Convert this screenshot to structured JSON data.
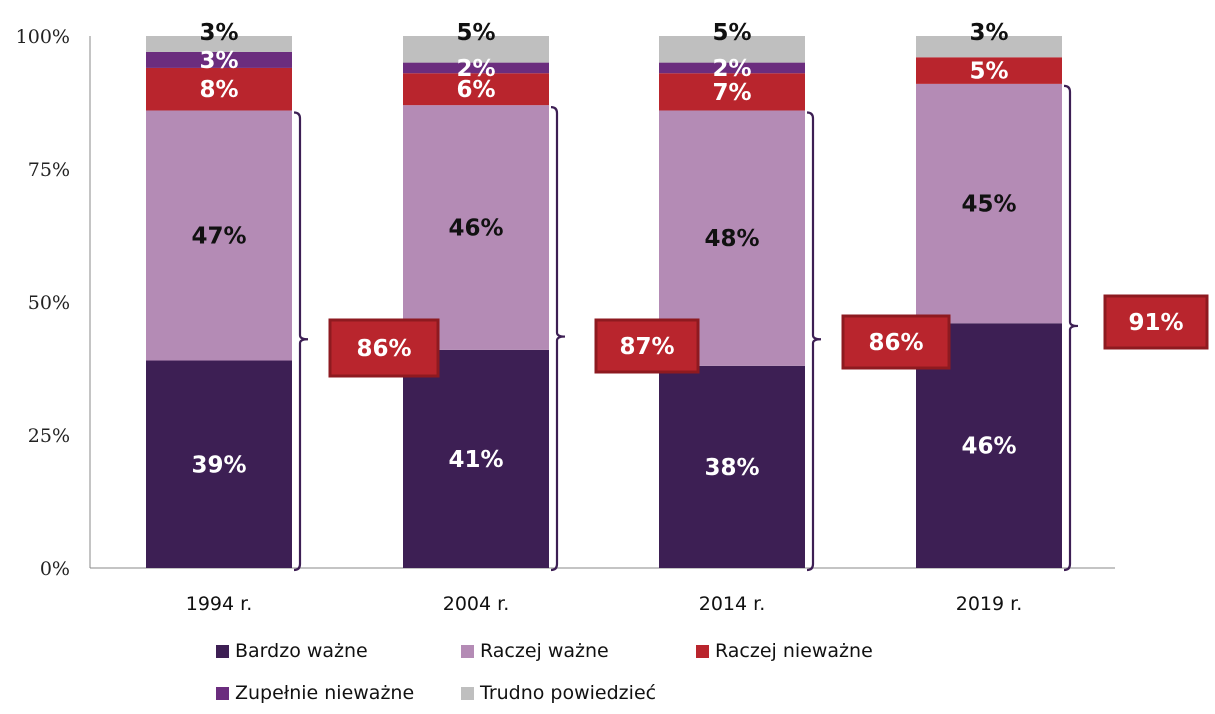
{
  "chart_data": {
    "type": "bar",
    "stacked": true,
    "title": "",
    "xlabel": "",
    "ylabel": "",
    "ylim": [
      0,
      100
    ],
    "yticks": [
      "0%",
      "25%",
      "50%",
      "75%",
      "100%"
    ],
    "ytick_values": [
      0,
      25,
      50,
      75,
      100
    ],
    "categories": [
      "1994 r.",
      "2004 r.",
      "2014 r.",
      "2019 r."
    ],
    "series": [
      {
        "name": "Bardzo ważne",
        "color": "#3d1f54",
        "label_color": "#ffffff",
        "values": [
          39,
          41,
          38,
          46
        ],
        "labels": [
          "39%",
          "41%",
          "38%",
          "46%"
        ]
      },
      {
        "name": "Raczej ważne",
        "color": "#b48bb5",
        "label_color": "#111111",
        "values": [
          47,
          46,
          48,
          45
        ],
        "labels": [
          "47%",
          "46%",
          "48%",
          "45%"
        ]
      },
      {
        "name": "Raczej nieważne",
        "color": "#b9252d",
        "label_color": "#ffffff",
        "values": [
          8,
          6,
          7,
          5
        ],
        "labels": [
          "8%",
          "6%",
          "7%",
          "5%"
        ]
      },
      {
        "name": "Zupełnie nieważne",
        "color": "#6b2d7e",
        "label_color": "#ffffff",
        "values": [
          3,
          2,
          2,
          0
        ],
        "labels": [
          "3%",
          "2%",
          "2%",
          ""
        ]
      },
      {
        "name": "Trudno powiedzieć",
        "color": "#bfbfbf",
        "label_color": "#111111",
        "values": [
          3,
          5,
          5,
          3
        ],
        "labels": [
          "3%",
          "5%",
          "5%",
          "3%"
        ]
      }
    ],
    "annotations": {
      "description": "Sum of 'Bardzo ważne' + 'Raczej ważne' shown in bracket callout boxes",
      "box_color": "#b9252d",
      "box_border_color": "#8e1a20",
      "values": [
        86,
        87,
        86,
        91
      ],
      "labels": [
        "86%",
        "87%",
        "86%",
        "91%"
      ]
    },
    "legend_position": "bottom",
    "grid": false
  }
}
